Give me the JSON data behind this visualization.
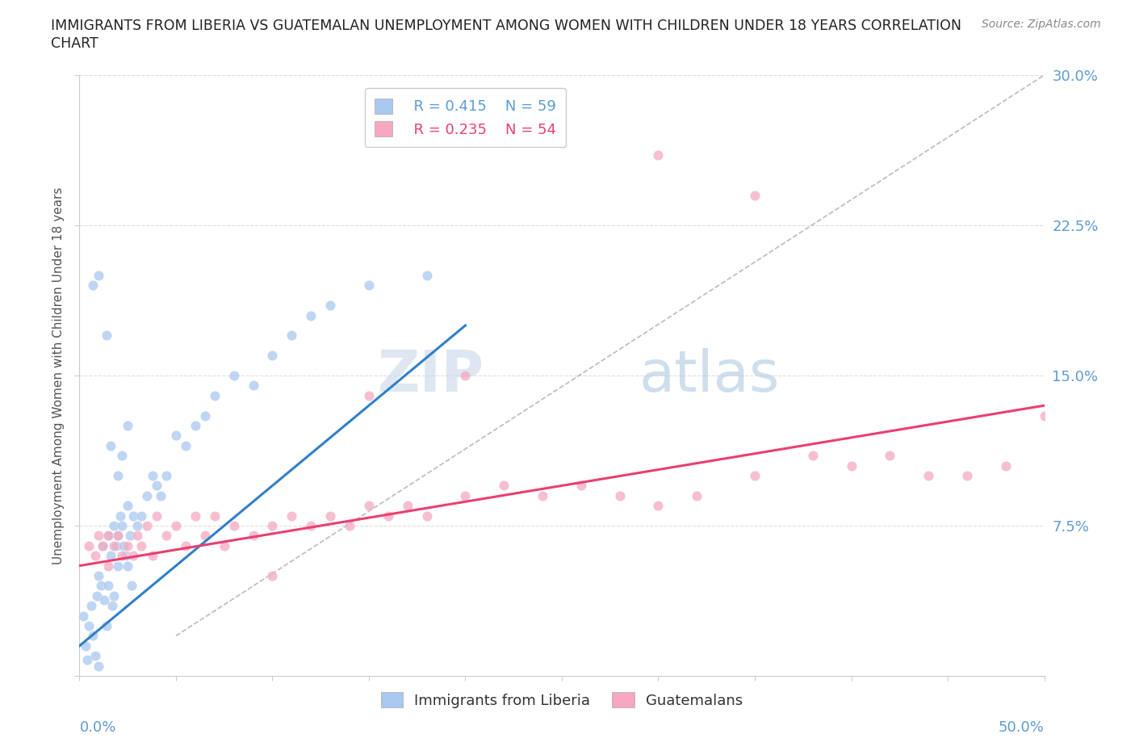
{
  "title_line1": "IMMIGRANTS FROM LIBERIA VS GUATEMALAN UNEMPLOYMENT AMONG WOMEN WITH CHILDREN UNDER 18 YEARS CORRELATION",
  "title_line2": "CHART",
  "source_text": "Source: ZipAtlas.com",
  "xlim": [
    0.0,
    0.5
  ],
  "ylim": [
    0.0,
    0.3
  ],
  "yticks": [
    0.0,
    0.075,
    0.15,
    0.225,
    0.3
  ],
  "ytick_labels_right": [
    "",
    "7.5%",
    "15.0%",
    "22.5%",
    "30.0%"
  ],
  "legend_r1": "R = 0.415",
  "legend_n1": "N = 59",
  "legend_r2": "R = 0.235",
  "legend_n2": "N = 54",
  "color_blue": "#A8C8F0",
  "color_pink": "#F5A8C0",
  "color_trend_blue": "#3080C8",
  "color_trend_pink": "#E84070",
  "color_ref_line": "#BBBBBB",
  "color_axis_labels": "#5B9BD5",
  "watermark_color": "#D8E8F5",
  "blue_x": [
    0.002,
    0.003,
    0.004,
    0.005,
    0.006,
    0.007,
    0.008,
    0.009,
    0.01,
    0.01,
    0.011,
    0.012,
    0.013,
    0.014,
    0.015,
    0.015,
    0.016,
    0.017,
    0.018,
    0.018,
    0.019,
    0.02,
    0.02,
    0.021,
    0.022,
    0.023,
    0.024,
    0.025,
    0.025,
    0.026,
    0.027,
    0.028,
    0.03,
    0.032,
    0.035,
    0.038,
    0.04,
    0.042,
    0.045,
    0.05,
    0.055,
    0.06,
    0.065,
    0.07,
    0.08,
    0.09,
    0.1,
    0.11,
    0.12,
    0.13,
    0.15,
    0.18,
    0.016,
    0.02,
    0.022,
    0.025,
    0.007,
    0.01,
    0.014
  ],
  "blue_y": [
    0.03,
    0.015,
    0.008,
    0.025,
    0.035,
    0.02,
    0.01,
    0.04,
    0.05,
    0.005,
    0.045,
    0.065,
    0.038,
    0.025,
    0.07,
    0.045,
    0.06,
    0.035,
    0.075,
    0.04,
    0.065,
    0.07,
    0.055,
    0.08,
    0.075,
    0.065,
    0.06,
    0.085,
    0.055,
    0.07,
    0.045,
    0.08,
    0.075,
    0.08,
    0.09,
    0.1,
    0.095,
    0.09,
    0.1,
    0.12,
    0.115,
    0.125,
    0.13,
    0.14,
    0.15,
    0.145,
    0.16,
    0.17,
    0.18,
    0.185,
    0.195,
    0.2,
    0.115,
    0.1,
    0.11,
    0.125,
    0.195,
    0.2,
    0.17
  ],
  "pink_x": [
    0.005,
    0.008,
    0.01,
    0.012,
    0.015,
    0.015,
    0.018,
    0.02,
    0.022,
    0.025,
    0.028,
    0.03,
    0.032,
    0.035,
    0.038,
    0.04,
    0.045,
    0.05,
    0.055,
    0.06,
    0.065,
    0.07,
    0.075,
    0.08,
    0.09,
    0.1,
    0.11,
    0.12,
    0.13,
    0.14,
    0.15,
    0.16,
    0.17,
    0.18,
    0.2,
    0.22,
    0.24,
    0.26,
    0.28,
    0.3,
    0.32,
    0.35,
    0.38,
    0.4,
    0.42,
    0.44,
    0.46,
    0.48,
    0.5,
    0.35,
    0.3,
    0.2,
    0.15,
    0.1
  ],
  "pink_y": [
    0.065,
    0.06,
    0.07,
    0.065,
    0.07,
    0.055,
    0.065,
    0.07,
    0.06,
    0.065,
    0.06,
    0.07,
    0.065,
    0.075,
    0.06,
    0.08,
    0.07,
    0.075,
    0.065,
    0.08,
    0.07,
    0.08,
    0.065,
    0.075,
    0.07,
    0.075,
    0.08,
    0.075,
    0.08,
    0.075,
    0.085,
    0.08,
    0.085,
    0.08,
    0.09,
    0.095,
    0.09,
    0.095,
    0.09,
    0.085,
    0.09,
    0.1,
    0.11,
    0.105,
    0.11,
    0.1,
    0.1,
    0.105,
    0.13,
    0.24,
    0.26,
    0.15,
    0.14,
    0.05
  ],
  "blue_trend_x": [
    0.0,
    0.2
  ],
  "blue_trend_y": [
    0.015,
    0.175
  ],
  "pink_trend_x": [
    0.0,
    0.5
  ],
  "pink_trend_y": [
    0.055,
    0.135
  ],
  "ref_line_x": [
    0.05,
    0.5
  ],
  "ref_line_y": [
    0.02,
    0.3
  ]
}
